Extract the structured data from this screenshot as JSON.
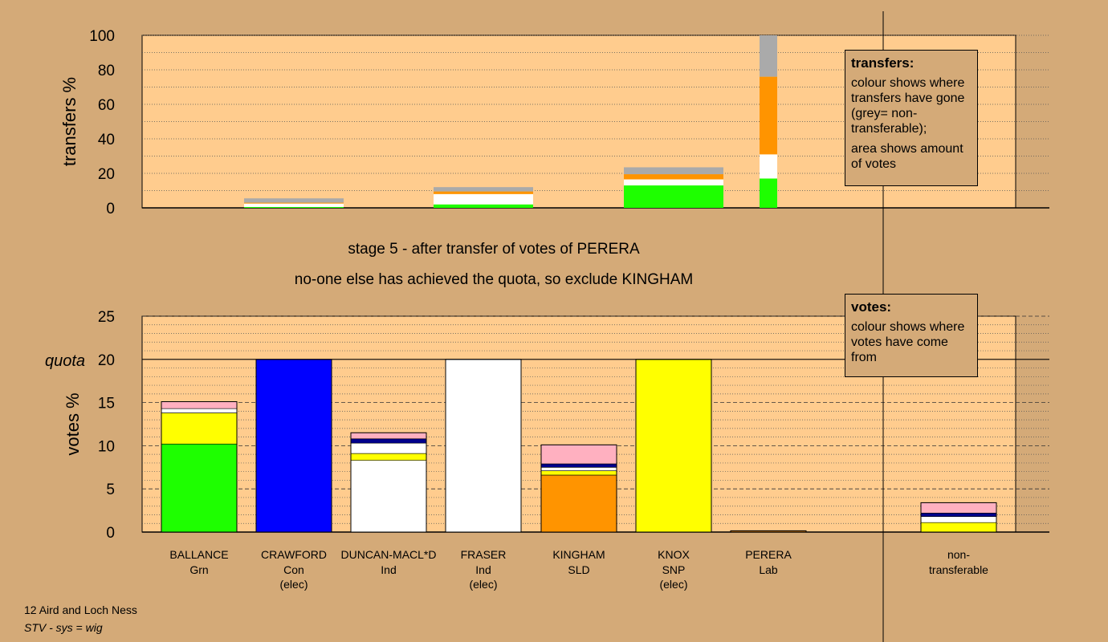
{
  "chart_data": [
    {
      "type": "bar",
      "name": "transfers",
      "ylabel": "transfers %",
      "ylim": [
        0,
        100
      ],
      "yticks": [
        0,
        20,
        40,
        60,
        80,
        100
      ],
      "categories": [
        "BALLANCE",
        "CRAWFORD",
        "DUNCAN-MACL*D",
        "FRASER",
        "KINGHAM",
        "KNOX",
        "PERERA"
      ],
      "stacks": [
        {
          "category": "CRAWFORD",
          "segments": [
            {
              "color": "#1EFF00",
              "value": 0.5
            },
            {
              "color": "#FFFFFF",
              "value": 2.0
            },
            {
              "color": "#FF9400",
              "value": 0.5
            },
            {
              "color": "#AAAAAA",
              "value": 2.5
            }
          ]
        },
        {
          "category": "FRASER",
          "segments": [
            {
              "color": "#1EFF00",
              "value": 2.0
            },
            {
              "color": "#FFFFFF",
              "value": 6.0
            },
            {
              "color": "#FF9400",
              "value": 1.5
            },
            {
              "color": "#AAAAAA",
              "value": 2.5
            }
          ]
        },
        {
          "category": "KNOX",
          "segments": [
            {
              "color": "#1EFF00",
              "value": 13.0
            },
            {
              "color": "#FFFFFF",
              "value": 3.5
            },
            {
              "color": "#FF9400",
              "value": 3.0
            },
            {
              "color": "#AAAAAA",
              "value": 4.0
            }
          ]
        },
        {
          "category": "PERERA",
          "segments": [
            {
              "color": "#1EFF00",
              "value": 17.0
            },
            {
              "color": "#FFFFFF",
              "value": 14.0
            },
            {
              "color": "#FF9400",
              "value": 45.0
            },
            {
              "color": "#AAAAAA",
              "value": 24.0
            }
          ]
        }
      ]
    },
    {
      "type": "bar",
      "name": "votes",
      "ylabel": "votes %",
      "ylim": [
        0,
        25
      ],
      "yticks": [
        0,
        5,
        10,
        15,
        20,
        25
      ],
      "quota": 20,
      "quota_label": "quota",
      "categories": [
        "BALLANCE",
        "CRAWFORD",
        "DUNCAN-MACL*D",
        "FRASER",
        "KINGHAM",
        "KNOX",
        "PERERA",
        "non-transferable"
      ],
      "stacks": [
        {
          "category": "BALLANCE",
          "segments": [
            {
              "color": "#1EFF00",
              "value": 10.2
            },
            {
              "color": "#FFFF00",
              "value": 3.6
            },
            {
              "color": "#FFFFFF",
              "value": 0.5
            },
            {
              "color": "#FFB0C0",
              "value": 0.8
            }
          ]
        },
        {
          "category": "CRAWFORD",
          "segments": [
            {
              "color": "#0000FF",
              "value": 20.0
            }
          ]
        },
        {
          "category": "DUNCAN-MACL*D",
          "segments": [
            {
              "color": "#FFFFFF",
              "value": 8.3
            },
            {
              "color": "#FFFF00",
              "value": 0.8
            },
            {
              "color": "#FFFFFF",
              "value": 1.2
            },
            {
              "color": "#00008B",
              "value": 0.5
            },
            {
              "color": "#FFB0C0",
              "value": 0.7
            }
          ]
        },
        {
          "category": "FRASER",
          "segments": [
            {
              "color": "#FFFFFF",
              "value": 20.0
            }
          ]
        },
        {
          "category": "KINGHAM",
          "segments": [
            {
              "color": "#FF9400",
              "value": 6.6
            },
            {
              "color": "#FFFF00",
              "value": 0.5
            },
            {
              "color": "#FFFFFF",
              "value": 0.4
            },
            {
              "color": "#00008B",
              "value": 0.4
            },
            {
              "color": "#FFB0C0",
              "value": 2.2
            }
          ]
        },
        {
          "category": "KNOX",
          "segments": [
            {
              "color": "#FFFF00",
              "value": 20.0
            }
          ]
        },
        {
          "category": "PERERA",
          "segments": [
            {
              "color": "#FF9400",
              "value": 0.15
            }
          ]
        },
        {
          "category": "non-transferable",
          "segments": [
            {
              "color": "#FFFF00",
              "value": 1.1
            },
            {
              "color": "#FFFFFF",
              "value": 0.7
            },
            {
              "color": "#00008B",
              "value": 0.4
            },
            {
              "color": "#FFB0C0",
              "value": 1.2
            }
          ]
        }
      ]
    }
  ],
  "candidates": [
    {
      "name": "BALLANCE",
      "party": "Grn",
      "status": ""
    },
    {
      "name": "CRAWFORD",
      "party": "Con",
      "status": "(elec)"
    },
    {
      "name": "DUNCAN-MACL*D",
      "party": "Ind",
      "status": ""
    },
    {
      "name": "FRASER",
      "party": "Ind",
      "status": "(elec)"
    },
    {
      "name": "KINGHAM",
      "party": "SLD",
      "status": ""
    },
    {
      "name": "KNOX",
      "party": "SNP",
      "status": "(elec)"
    },
    {
      "name": "PERERA",
      "party": "Lab",
      "status": ""
    }
  ],
  "nontransferable_label": [
    "non-",
    "transferable"
  ],
  "stage_line1": "stage 5 - after transfer of votes of PERERA",
  "stage_line2": "no-one else has achieved the quota, so exclude KINGHAM",
  "transfers_box": {
    "heading": "transfers:",
    "text1": "colour shows where transfers have gone (grey= non-transferable);",
    "text2": "area shows amount of votes"
  },
  "votes_box": {
    "heading": "votes:",
    "text1": "colour shows where votes have come from"
  },
  "footer_line1": "12 Aird and Loch Ness",
  "footer_line2": "STV - sys = wig",
  "colors": {
    "background": "#D4AA78",
    "plot": "#FFCC8E"
  }
}
